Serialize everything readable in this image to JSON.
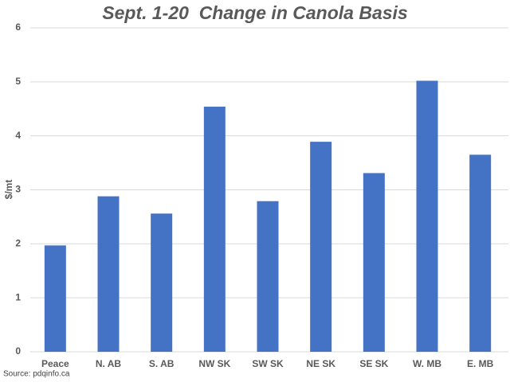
{
  "chart_data": {
    "type": "bar",
    "title": "Sept. 1-20  Change in Canola Basis",
    "y_label": "$/mt",
    "source": "Source: pdqinfo.ca",
    "categories": [
      "Peace",
      "N. AB",
      "S. AB",
      "NW SK",
      "SW SK",
      "NE SK",
      "SE SK",
      "W. MB",
      "E. MB"
    ],
    "values": [
      1.97,
      2.88,
      2.56,
      4.54,
      2.79,
      3.89,
      3.31,
      5.02,
      3.65
    ],
    "color": "#4472c4",
    "ylim": [
      0,
      6
    ],
    "yticks": [
      0,
      1,
      2,
      3,
      4,
      5,
      6
    ],
    "grid": true
  }
}
